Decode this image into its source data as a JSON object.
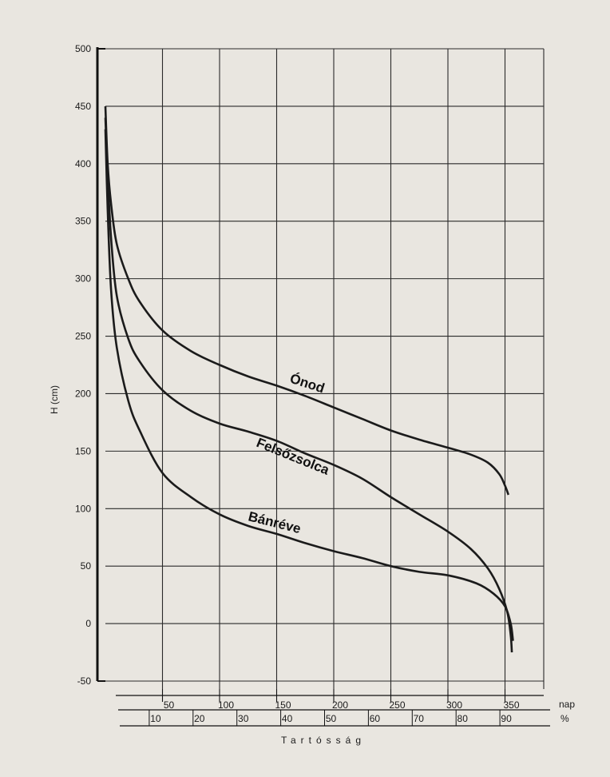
{
  "chart_data": {
    "type": "line",
    "title": "",
    "ylabel": "H (cm)",
    "xlabel": "Tartósság",
    "ylim": [
      -50,
      500
    ],
    "yticks": [
      500,
      450,
      400,
      350,
      300,
      250,
      200,
      150,
      100,
      50,
      0,
      -50
    ],
    "x_nap_ticks": [
      50,
      100,
      150,
      200,
      250,
      300,
      350
    ],
    "x_pct_ticks": [
      10,
      20,
      30,
      40,
      50,
      60,
      70,
      80,
      90
    ],
    "x_nap_unit": "nap",
    "x_pct_unit": "%",
    "grid": true,
    "series": [
      {
        "name": "Ónod",
        "x_nap": [
          0,
          2,
          5,
          10,
          20,
          30,
          50,
          75,
          100,
          125,
          150,
          175,
          200,
          225,
          250,
          275,
          300,
          320,
          335,
          345,
          350,
          353
        ],
        "y": [
          450,
          400,
          365,
          330,
          300,
          280,
          255,
          237,
          225,
          215,
          207,
          198,
          188,
          178,
          168,
          160,
          153,
          147,
          140,
          130,
          120,
          112
        ]
      },
      {
        "name": "Felsőzsolca",
        "x_nap": [
          0,
          2,
          5,
          10,
          20,
          30,
          50,
          75,
          100,
          125,
          150,
          175,
          200,
          225,
          250,
          275,
          300,
          320,
          335,
          345,
          352,
          355,
          356
        ],
        "y": [
          440,
          390,
          335,
          285,
          248,
          228,
          203,
          185,
          174,
          167,
          159,
          148,
          138,
          126,
          110,
          95,
          80,
          65,
          48,
          30,
          10,
          -10,
          -25
        ]
      },
      {
        "name": "Bánréve",
        "x_nap": [
          0,
          2,
          5,
          10,
          20,
          30,
          50,
          75,
          100,
          125,
          150,
          175,
          200,
          225,
          250,
          275,
          300,
          325,
          340,
          350,
          355,
          357
        ],
        "y": [
          430,
          360,
          290,
          240,
          194,
          168,
          131,
          110,
          95,
          85,
          78,
          70,
          63,
          57,
          50,
          45,
          42,
          35,
          26,
          15,
          0,
          -15
        ]
      }
    ]
  }
}
